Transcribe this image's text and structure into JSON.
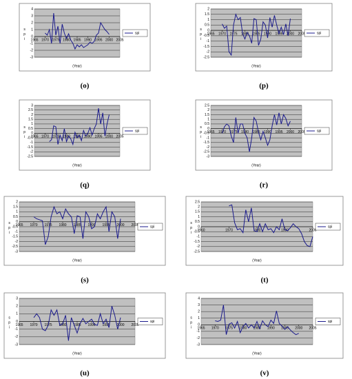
{
  "chart_data": [
    {
      "type": "line",
      "label": "(o)",
      "xlabel": "(Year)",
      "ylabel": "spi",
      "x": [
        1970,
        1971,
        1972,
        1973,
        1974,
        1975,
        1976,
        1977,
        1978,
        1979,
        1980,
        1981,
        1982,
        1983,
        1984,
        1985,
        1986,
        1987,
        1988,
        1989,
        1990,
        1991,
        1992,
        1993,
        1994,
        1995,
        1996,
        1997,
        1998,
        1999,
        2000
      ],
      "series": [
        {
          "name": "spi",
          "color": "#1a1a8c",
          "values": [
            0.5,
            0.2,
            1.0,
            -1.0,
            3.4,
            0.2,
            1.5,
            -1.0,
            1.8,
            0.5,
            -0.3,
            0.4,
            -0.5,
            -1.0,
            -1.8,
            -1.2,
            -1.5,
            -1.2,
            -1.6,
            -1.4,
            -1.2,
            -0.8,
            -1.0,
            -0.7,
            0.2,
            0.5,
            2.0,
            1.5,
            1.0,
            0.7,
            0.3
          ]
        }
      ],
      "xlim": [
        1965,
        2005
      ],
      "xticks": [
        1965,
        1970,
        1975,
        1980,
        1985,
        1990,
        1995,
        2000,
        2005
      ],
      "ylim": [
        -3,
        4
      ],
      "yticks": [
        -3,
        -2,
        -1,
        0,
        1,
        2,
        3,
        4
      ],
      "grid": true
    },
    {
      "type": "line",
      "label": "(p)",
      "xlabel": "(Year)",
      "ylabel": "spi",
      "x": [
        1970,
        1971,
        1972,
        1973,
        1974,
        1975,
        1976,
        1977,
        1978,
        1979,
        1980,
        1981,
        1982,
        1983,
        1984,
        1985,
        1986,
        1987,
        1988,
        1989,
        1990,
        1991,
        1992,
        1993,
        1994,
        1995,
        1996,
        1997,
        1998,
        1999,
        2000
      ],
      "series": [
        {
          "name": "spi",
          "color": "#1a1a8c",
          "values": [
            0.6,
            0.2,
            0.4,
            -2.0,
            -2.3,
            0.5,
            1.5,
            1.0,
            1.2,
            -0.3,
            -0.8,
            -0.2,
            -0.5,
            -1.2,
            1.1,
            1.0,
            -1.4,
            -0.8,
            0.8,
            0.5,
            -0.7,
            1.2,
            0.3,
            1.4,
            0.5,
            -0.3,
            0.3,
            -0.4,
            0.6,
            -0.5,
            1.1
          ]
        }
      ],
      "xlim": [
        1965,
        2005
      ],
      "xticks": [
        1965,
        1970,
        1975,
        1980,
        1985,
        1990,
        1995,
        2000,
        2005
      ],
      "ylim": [
        -2.5,
        2
      ],
      "yticks": [
        -2.5,
        -2,
        -1.5,
        -1,
        -0.5,
        0,
        0.5,
        1,
        1.5,
        2
      ],
      "grid": true
    },
    {
      "type": "line",
      "label": "(q)",
      "xlabel": "(Year)",
      "ylabel": "spi",
      "x": [
        1972,
        1973,
        1974,
        1975,
        1976,
        1977,
        1978,
        1979,
        1980,
        1981,
        1982,
        1983,
        1984,
        1985,
        1986,
        1987,
        1988,
        1989,
        1990,
        1991,
        1992,
        1993,
        1994,
        1995,
        1996,
        1997,
        1998,
        1999,
        2000
      ],
      "series": [
        {
          "name": "spi",
          "color": "#1a1a8c",
          "values": [
            -0.9,
            -0.7,
            0.8,
            0.7,
            -1.2,
            -0.2,
            -0.8,
            0.5,
            -0.9,
            -0.3,
            -0.6,
            -1.2,
            0.1,
            -0.5,
            -0.2,
            -0.8,
            0.3,
            -0.3,
            0,
            0.6,
            -0.2,
            0.5,
            1.0,
            2.7,
            1.0,
            2.2,
            -0.3,
            1.0,
            2.0
          ]
        }
      ],
      "xlim": [
        1965,
        2005
      ],
      "xticks": [
        1965,
        1970,
        1975,
        1980,
        1985,
        1990,
        1995,
        2000,
        2005
      ],
      "ylim": [
        -2.5,
        3
      ],
      "yticks": [
        -2.5,
        -2,
        -1.5,
        -1,
        -0.5,
        0,
        0.5,
        1,
        1.5,
        2,
        2.5,
        3
      ],
      "grid": true
    },
    {
      "type": "line",
      "label": "(r)",
      "xlabel": "(Year)",
      "ylabel": "spi",
      "x": [
        1970,
        1971,
        1972,
        1973,
        1974,
        1975,
        1976,
        1977,
        1978,
        1979,
        1980,
        1981,
        1982,
        1983,
        1984,
        1985,
        1986,
        1987,
        1988,
        1989,
        1990,
        1991,
        1992,
        1993,
        1994,
        1995,
        1996,
        1997,
        1998,
        1999,
        2000
      ],
      "series": [
        {
          "name": "spi",
          "color": "#1a1a8c",
          "values": [
            -0.5,
            0.2,
            0.5,
            0.3,
            -0.8,
            -1.5,
            1.2,
            -0.5,
            0.5,
            0.5,
            -0.5,
            -1.0,
            -2.5,
            -1.0,
            1.2,
            0.8,
            -0.4,
            -1.2,
            -0.3,
            -1.0,
            -1.8,
            -1.2,
            0.3,
            1.5,
            0.4,
            1.7,
            0.5,
            1.5,
            1.1,
            0.3,
            0.8
          ]
        }
      ],
      "xlim": [
        1965,
        2005
      ],
      "xticks": [
        1965,
        1970,
        1975,
        1980,
        1985,
        1990,
        1995,
        2000,
        2005
      ],
      "ylim": [
        -3,
        2.5
      ],
      "yticks": [
        -3,
        -2.5,
        -2,
        -1.5,
        -1,
        -0.5,
        0,
        0.5,
        1,
        1.5,
        2,
        2.5
      ],
      "grid": true
    },
    {
      "type": "line",
      "label": "(s)",
      "xlabel": "(Year)",
      "ylabel": "spi",
      "x": [
        1970,
        1971,
        1972,
        1973,
        1974,
        1975,
        1976,
        1977,
        1978,
        1979,
        1980,
        1981,
        1982,
        1983,
        1984,
        1985,
        1986,
        1987,
        1988,
        1989,
        1990,
        1991,
        1992,
        1993,
        1994,
        1995,
        1996,
        1997,
        1998,
        1999,
        2000
      ],
      "series": [
        {
          "name": "spi",
          "color": "#1a1a8c",
          "values": [
            0.5,
            0.3,
            0.2,
            0.1,
            -2.3,
            -1.5,
            0.5,
            1.5,
            0.8,
            1.0,
            0.3,
            1.3,
            0.8,
            0.5,
            -1.2,
            0.6,
            0.5,
            -1.7,
            1.0,
            0.5,
            -0.7,
            -0.5,
            0.8,
            0.3,
            1.0,
            1.5,
            -1.0,
            1.0,
            0.5,
            -1.7,
            0.3
          ]
        }
      ],
      "xlim": [
        1965,
        2005
      ],
      "xticks": [
        1965,
        1970,
        1975,
        1980,
        1985,
        1990,
        1995,
        2000,
        2005
      ],
      "ylim": [
        -3,
        2
      ],
      "yticks": [
        -3,
        -2.5,
        -2,
        -1.5,
        -1,
        -0.5,
        0,
        0.5,
        1,
        1.5,
        2
      ],
      "grid": true
    },
    {
      "type": "line",
      "label": "(t)",
      "xlabel": "(Year)",
      "ylabel": "spi",
      "x": [
        1970,
        1971,
        1972,
        1973,
        1974,
        1975,
        1976,
        1977,
        1978,
        1979,
        1980,
        1981,
        1982,
        1983,
        1984,
        1985,
        1986,
        1987,
        1988,
        1989,
        1990,
        1991,
        1992,
        1993,
        1994,
        1995,
        1996,
        1997,
        1998,
        1999,
        2000
      ],
      "series": [
        {
          "name": "spi",
          "color": "#1a1a8c",
          "values": [
            2.1,
            2.2,
            0.4,
            -0.3,
            -0.2,
            -0.6,
            1.7,
            0.5,
            1.9,
            -0.4,
            -0.5,
            0.3,
            -0.5,
            0.3,
            -0.3,
            -0.2,
            -0.6,
            0,
            -0.3,
            0.8,
            -0.3,
            -0.4,
            -0.1,
            0.3,
            0,
            -0.2,
            -0.7,
            -1.5,
            -1.9,
            -2.0,
            -1.0
          ]
        }
      ],
      "xlim": [
        1960,
        2000
      ],
      "xticks": [
        1960,
        1970,
        1980,
        1990,
        2000
      ],
      "ylim": [
        -2.5,
        2.5
      ],
      "yticks": [
        -2.5,
        -2,
        -1.5,
        -1,
        -0.5,
        0,
        0.5,
        1,
        1.5,
        2,
        2.5
      ],
      "grid": true
    },
    {
      "type": "line",
      "label": "(u)",
      "xlabel": "(Year)",
      "ylabel": "spi",
      "x": [
        1970,
        1971,
        1972,
        1973,
        1974,
        1975,
        1976,
        1977,
        1978,
        1979,
        1980,
        1981,
        1982,
        1983,
        1984,
        1985,
        1986,
        1987,
        1988,
        1989,
        1990,
        1991,
        1992,
        1993,
        1994,
        1995,
        1996,
        1997,
        1998,
        1999,
        2000
      ],
      "series": [
        {
          "name": "spi",
          "color": "#1a1a8c",
          "values": [
            0.5,
            1.0,
            0.5,
            -1.0,
            -1.2,
            -0.5,
            1.5,
            0.8,
            1.5,
            -0.5,
            -0.3,
            0.8,
            -2.5,
            0.5,
            -0.5,
            -1.5,
            -0.3,
            0.4,
            -0.3,
            0,
            0.3,
            -0.4,
            -0.5,
            1.0,
            -0.3,
            0.3,
            -0.8,
            2.0,
            0.8,
            -1.0,
            0.5
          ]
        }
      ],
      "xlim": [
        1965,
        2005
      ],
      "xticks": [
        1965,
        1970,
        1975,
        1980,
        1985,
        1990,
        1995,
        2000,
        2005
      ],
      "ylim": [
        -3,
        3
      ],
      "yticks": [
        -3,
        -2,
        -1,
        0,
        1,
        2,
        3
      ],
      "grid": true
    },
    {
      "type": "line",
      "label": "(v)",
      "xlabel": "(Year)",
      "ylabel": "spi",
      "x": [
        1970,
        1971,
        1972,
        1973,
        1974,
        1975,
        1976,
        1977,
        1978,
        1979,
        1980,
        1981,
        1982,
        1983,
        1984,
        1985,
        1986,
        1987,
        1988,
        1989,
        1990,
        1991,
        1992,
        1993,
        1994,
        1995,
        1996,
        1997,
        1998,
        1999,
        2000
      ],
      "series": [
        {
          "name": "spi",
          "color": "#1a1a8c",
          "values": [
            0.6,
            0.5,
            0.7,
            3.0,
            -1.5,
            0.1,
            0.3,
            -0.5,
            0.5,
            -1.2,
            -0.3,
            0.2,
            -0.5,
            0,
            -0.5,
            0.5,
            -0.6,
            0.6,
            0,
            -0.3,
            0.7,
            0.2,
            2.1,
            0.2,
            -0.2,
            -0.7,
            -0.3,
            -0.8,
            -1.2,
            -1.5,
            -1.3
          ]
        }
      ],
      "xlim": [
        1965,
        2005
      ],
      "xticks": [
        1965,
        1970,
        1975,
        1980,
        1985,
        1990,
        1995,
        2000,
        2005
      ],
      "ylim": [
        -3,
        4
      ],
      "yticks": [
        -3,
        -2,
        -1,
        0,
        1,
        2,
        3,
        4
      ],
      "grid": true
    }
  ]
}
